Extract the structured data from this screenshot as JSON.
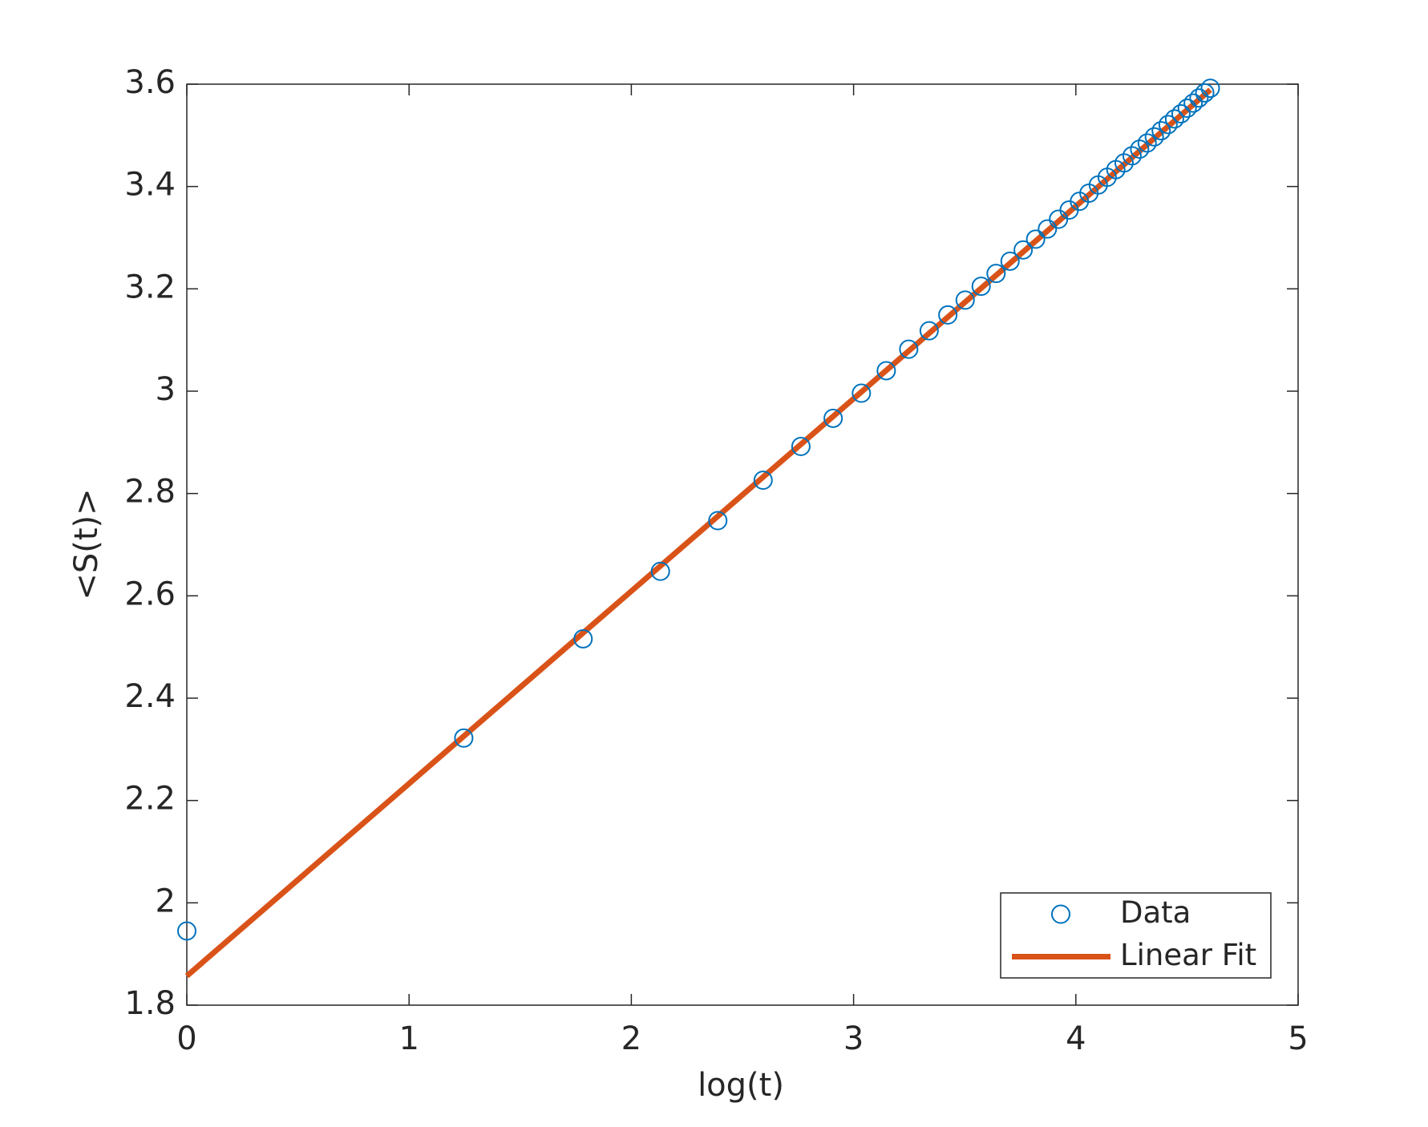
{
  "chart_data": {
    "type": "scatter",
    "xlabel": "log(t)",
    "ylabel": "<S(t)>",
    "xlim": [
      0,
      5
    ],
    "xticks": [
      0,
      1,
      2,
      3,
      4,
      5
    ],
    "ylim": [
      1.8,
      3.6
    ],
    "yticks": [
      1.8,
      2,
      2.2,
      2.4,
      2.6,
      2.8,
      3,
      3.2,
      3.4,
      3.6
    ],
    "legend_position": "lower right",
    "series": [
      {
        "name": "Data",
        "color": "#0072bd",
        "mode": "markers",
        "x": [
          0,
          1.246,
          1.783,
          2.131,
          2.389,
          2.593,
          2.763,
          2.908,
          3.035,
          3.147,
          3.248,
          3.34,
          3.424,
          3.502,
          3.574,
          3.641,
          3.704,
          3.763,
          3.819,
          3.872,
          3.922,
          3.97,
          4.016,
          4.059,
          4.101,
          4.141,
          4.18,
          4.217,
          4.253,
          4.287,
          4.321,
          4.353,
          4.384,
          4.415,
          4.444,
          4.473,
          4.501,
          4.528,
          4.554,
          4.58,
          4.605
        ],
        "values": [
          1.945,
          2.322,
          2.516,
          2.648,
          2.747,
          2.826,
          2.892,
          2.947,
          2.996,
          3.04,
          3.082,
          3.118,
          3.149,
          3.178,
          3.205,
          3.23,
          3.254,
          3.276,
          3.297,
          3.317,
          3.336,
          3.354,
          3.371,
          3.387,
          3.403,
          3.418,
          3.433,
          3.446,
          3.46,
          3.473,
          3.485,
          3.497,
          3.509,
          3.521,
          3.532,
          3.542,
          3.553,
          3.563,
          3.573,
          3.583,
          3.592
        ]
      },
      {
        "name": "Linear Fit",
        "color": "#d95319",
        "mode": "line",
        "x": [
          0,
          4.605
        ],
        "values": [
          1.857,
          3.589
        ]
      }
    ]
  }
}
